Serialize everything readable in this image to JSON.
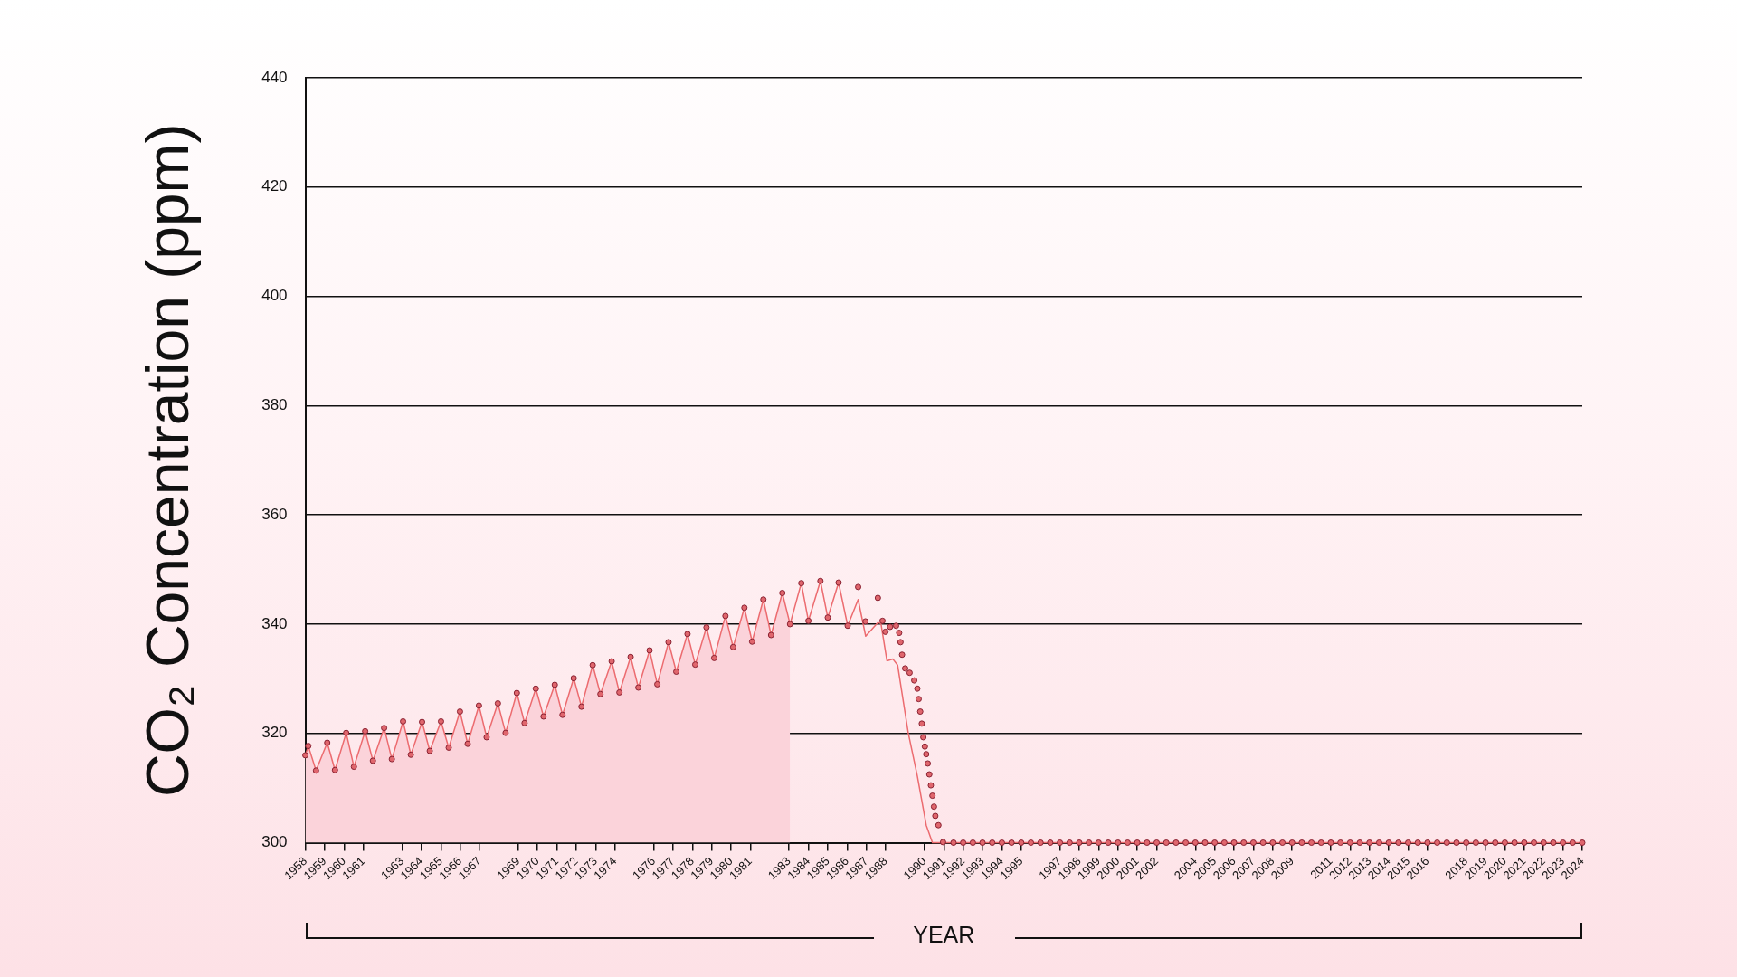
{
  "chart_data": {
    "type": "line",
    "ylabel": "CO₂ Concentration (ppm)",
    "xlabel": "YEAR",
    "xlim": [
      1958,
      2024
    ],
    "ylim": [
      300,
      440
    ],
    "yticks": [
      300,
      320,
      340,
      360,
      380,
      400,
      420,
      440
    ],
    "xticks": [
      1958,
      1959,
      1960,
      1961,
      1963,
      1964,
      1965,
      1966,
      1967,
      1969,
      1970,
      1971,
      1972,
      1973,
      1974,
      1976,
      1977,
      1978,
      1979,
      1980,
      1981,
      1983,
      1984,
      1985,
      1986,
      1987,
      1988,
      1990,
      1991,
      1992,
      1993,
      1994,
      1995,
      1997,
      1998,
      1999,
      2000,
      2001,
      2002,
      2004,
      2005,
      2006,
      2007,
      2008,
      2009,
      2011,
      2012,
      2013,
      2014,
      2015,
      2016,
      2018,
      2019,
      2020,
      2021,
      2022,
      2023,
      2024
    ],
    "grid": "y",
    "legend": false,
    "series": [
      {
        "type": "area",
        "color": "#fbd3da",
        "marker": "none",
        "x": [
          1958,
          1958.15,
          1958.55,
          1959.13,
          1959.53,
          1960.11,
          1960.51,
          1961.09,
          1961.49,
          1962.07,
          1962.47,
          1963.05,
          1963.45,
          1964.03,
          1964.43,
          1965.01,
          1965.41,
          1965.99,
          1966.39,
          1966.97,
          1967.37,
          1967.95,
          1968.35,
          1968.93,
          1969.33,
          1969.91,
          1970.31,
          1970.89,
          1971.29,
          1971.87,
          1972.27,
          1972.85,
          1973.25,
          1973.83,
          1974.23,
          1974.81,
          1975.21,
          1975.79,
          1976.19,
          1976.77,
          1977.17,
          1977.75,
          1978.15,
          1978.73,
          1979.13,
          1979.71,
          1980.11,
          1980.69,
          1981.09,
          1981.67,
          1982.07,
          1982.65,
          1983.05
        ],
        "values": [
          316.0,
          317.7,
          313.2,
          318.3,
          313.3,
          320.1,
          313.9,
          320.4,
          315.0,
          321.0,
          315.3,
          322.2,
          316.1,
          322.1,
          316.8,
          322.2,
          317.4,
          324.0,
          318.1,
          325.1,
          319.3,
          325.5,
          320.1,
          327.4,
          321.9,
          328.2,
          323.1,
          328.9,
          323.4,
          330.1,
          324.9,
          332.5,
          327.2,
          333.2,
          327.5,
          334.0,
          328.4,
          335.2,
          329.0,
          336.7,
          331.3,
          338.2,
          332.6,
          339.4,
          333.8,
          341.5,
          335.8,
          343.0,
          336.8,
          344.5,
          338.0,
          345.7,
          340.0
        ]
      },
      {
        "color": "#ec6b6f",
        "marker": "none",
        "line_style": "solid",
        "x": [
          1958,
          1958.15,
          1958.55,
          1959.13,
          1959.53,
          1960.11,
          1960.51,
          1961.09,
          1961.49,
          1962.07,
          1962.47,
          1963.05,
          1963.45,
          1964.03,
          1964.43,
          1965.01,
          1965.41,
          1965.99,
          1966.39,
          1966.97,
          1967.37,
          1967.95,
          1968.35,
          1968.93,
          1969.33,
          1969.91,
          1970.31,
          1970.89,
          1971.29,
          1971.87,
          1972.27,
          1972.85,
          1973.25,
          1973.83,
          1974.23,
          1974.81,
          1975.21,
          1975.79,
          1976.19,
          1976.77,
          1977.17,
          1977.75,
          1978.15,
          1978.73,
          1979.13,
          1979.71,
          1980.11,
          1980.69,
          1981.09,
          1981.67,
          1982.07,
          1982.65,
          1983.05,
          1983.63,
          1984.0,
          1984.62,
          1985.0,
          1985.56,
          1986.03,
          1986.57,
          1986.96,
          1987.59,
          1987.75,
          1988.06,
          1988.37,
          1988.61,
          1989.16,
          1989.63,
          1990.09,
          1990.41,
          2024
        ],
        "values": [
          316.0,
          317.7,
          313.2,
          318.3,
          313.3,
          320.1,
          313.9,
          320.4,
          315.0,
          321.0,
          315.3,
          322.2,
          316.1,
          322.1,
          316.8,
          322.2,
          317.4,
          324.0,
          318.1,
          325.1,
          319.3,
          325.5,
          320.1,
          327.4,
          321.9,
          328.2,
          323.1,
          328.9,
          323.4,
          330.1,
          324.9,
          332.5,
          327.2,
          333.2,
          327.5,
          334.0,
          328.4,
          335.2,
          329.0,
          336.7,
          331.3,
          338.2,
          332.6,
          339.4,
          333.8,
          341.5,
          335.8,
          343.0,
          336.8,
          344.5,
          338.0,
          345.7,
          340.0,
          347.5,
          340.6,
          347.9,
          341.2,
          347.6,
          339.7,
          344.5,
          337.8,
          340.3,
          340.1,
          333.3,
          333.6,
          332.5,
          320.1,
          312.2,
          303.2,
          300,
          300
        ]
      },
      {
        "type": "scatter",
        "color": "#e0666d",
        "marker": "circle",
        "x": [
          1958,
          1958.15,
          1958.55,
          1959.13,
          1959.53,
          1960.11,
          1960.51,
          1961.09,
          1961.49,
          1962.07,
          1962.47,
          1963.05,
          1963.45,
          1964.03,
          1964.43,
          1965.01,
          1965.41,
          1965.99,
          1966.39,
          1966.97,
          1967.37,
          1967.95,
          1968.35,
          1968.93,
          1969.33,
          1969.91,
          1970.31,
          1970.89,
          1971.29,
          1971.87,
          1972.27,
          1972.85,
          1973.25,
          1973.83,
          1974.23,
          1974.81,
          1975.21,
          1975.79,
          1976.19,
          1976.77,
          1977.17,
          1977.75,
          1978.15,
          1978.73,
          1979.13,
          1979.71,
          1980.11,
          1980.69,
          1981.09,
          1981.67,
          1982.07,
          1982.65,
          1983.05,
          1983.63,
          1984.0,
          1984.62,
          1985.0,
          1985.56,
          1986.03,
          1986.57,
          1986.95,
          1987.59,
          1987.83,
          1987.98,
          1988.22,
          1988.53,
          1988.69,
          1988.76,
          1988.84,
          1989.0,
          1989.23,
          1989.47,
          1989.63,
          1989.7,
          1989.78,
          1989.86,
          1989.94,
          1990.02,
          1990.09,
          1990.17,
          1990.25,
          1990.33,
          1990.41,
          1990.49,
          1990.56,
          1990.72,
          1990.96,
          1991.5,
          1992,
          1992.5,
          1993,
          1993.5,
          1994,
          1994.5,
          1995,
          1995.5,
          1996,
          1996.5,
          1997,
          1997.5,
          1998,
          1998.5,
          1999,
          1999.5,
          2000,
          2000.5,
          2001,
          2001.5,
          2002,
          2002.5,
          2003,
          2003.5,
          2004,
          2004.5,
          2005,
          2005.5,
          2006,
          2006.5,
          2007,
          2007.5,
          2008,
          2008.5,
          2009,
          2009.5,
          2010,
          2010.5,
          2011,
          2011.5,
          2012,
          2012.5,
          2013,
          2013.5,
          2014,
          2014.5,
          2015,
          2015.5,
          2016,
          2016.5,
          2017,
          2017.5,
          2018,
          2018.5,
          2019,
          2019.5,
          2020,
          2020.5,
          2021,
          2021.5,
          2022,
          2022.5,
          2023,
          2023.5,
          2024
        ],
        "values": [
          316.0,
          317.7,
          313.2,
          318.3,
          313.3,
          320.1,
          313.9,
          320.4,
          315.0,
          321.0,
          315.3,
          322.2,
          316.1,
          322.1,
          316.8,
          322.2,
          317.4,
          324.0,
          318.1,
          325.1,
          319.3,
          325.5,
          320.1,
          327.4,
          321.9,
          328.2,
          323.1,
          328.9,
          323.4,
          330.1,
          324.9,
          332.5,
          327.2,
          333.2,
          327.5,
          334.0,
          328.4,
          335.2,
          329.0,
          336.7,
          331.3,
          338.2,
          332.6,
          339.4,
          333.8,
          341.5,
          335.8,
          343.0,
          336.8,
          344.5,
          338.0,
          345.7,
          340.0,
          347.5,
          340.6,
          347.9,
          341.2,
          347.6,
          339.7,
          346.8,
          340.5,
          344.8,
          340.6,
          338.6,
          339.5,
          339.7,
          338.4,
          336.7,
          334.4,
          331.9,
          331.1,
          329.7,
          328.2,
          326.3,
          324.0,
          321.8,
          319.3,
          317.6,
          316.2,
          314.5,
          312.5,
          310.5,
          308.6,
          306.6,
          304.9,
          303.2,
          300.1,
          300,
          300,
          300,
          300,
          300,
          300,
          300,
          300,
          300,
          300,
          300,
          300,
          300,
          300,
          300,
          300,
          300,
          300,
          300,
          300,
          300,
          300,
          300,
          300,
          300,
          300,
          300,
          300,
          300,
          300,
          300,
          300,
          300,
          300,
          300,
          300,
          300,
          300,
          300,
          300,
          300,
          300,
          300,
          300,
          300,
          300,
          300,
          300,
          300,
          300,
          300,
          300,
          300,
          300,
          300,
          300,
          300,
          300,
          300,
          300,
          300,
          300,
          300,
          300,
          300,
          300
        ]
      }
    ]
  }
}
